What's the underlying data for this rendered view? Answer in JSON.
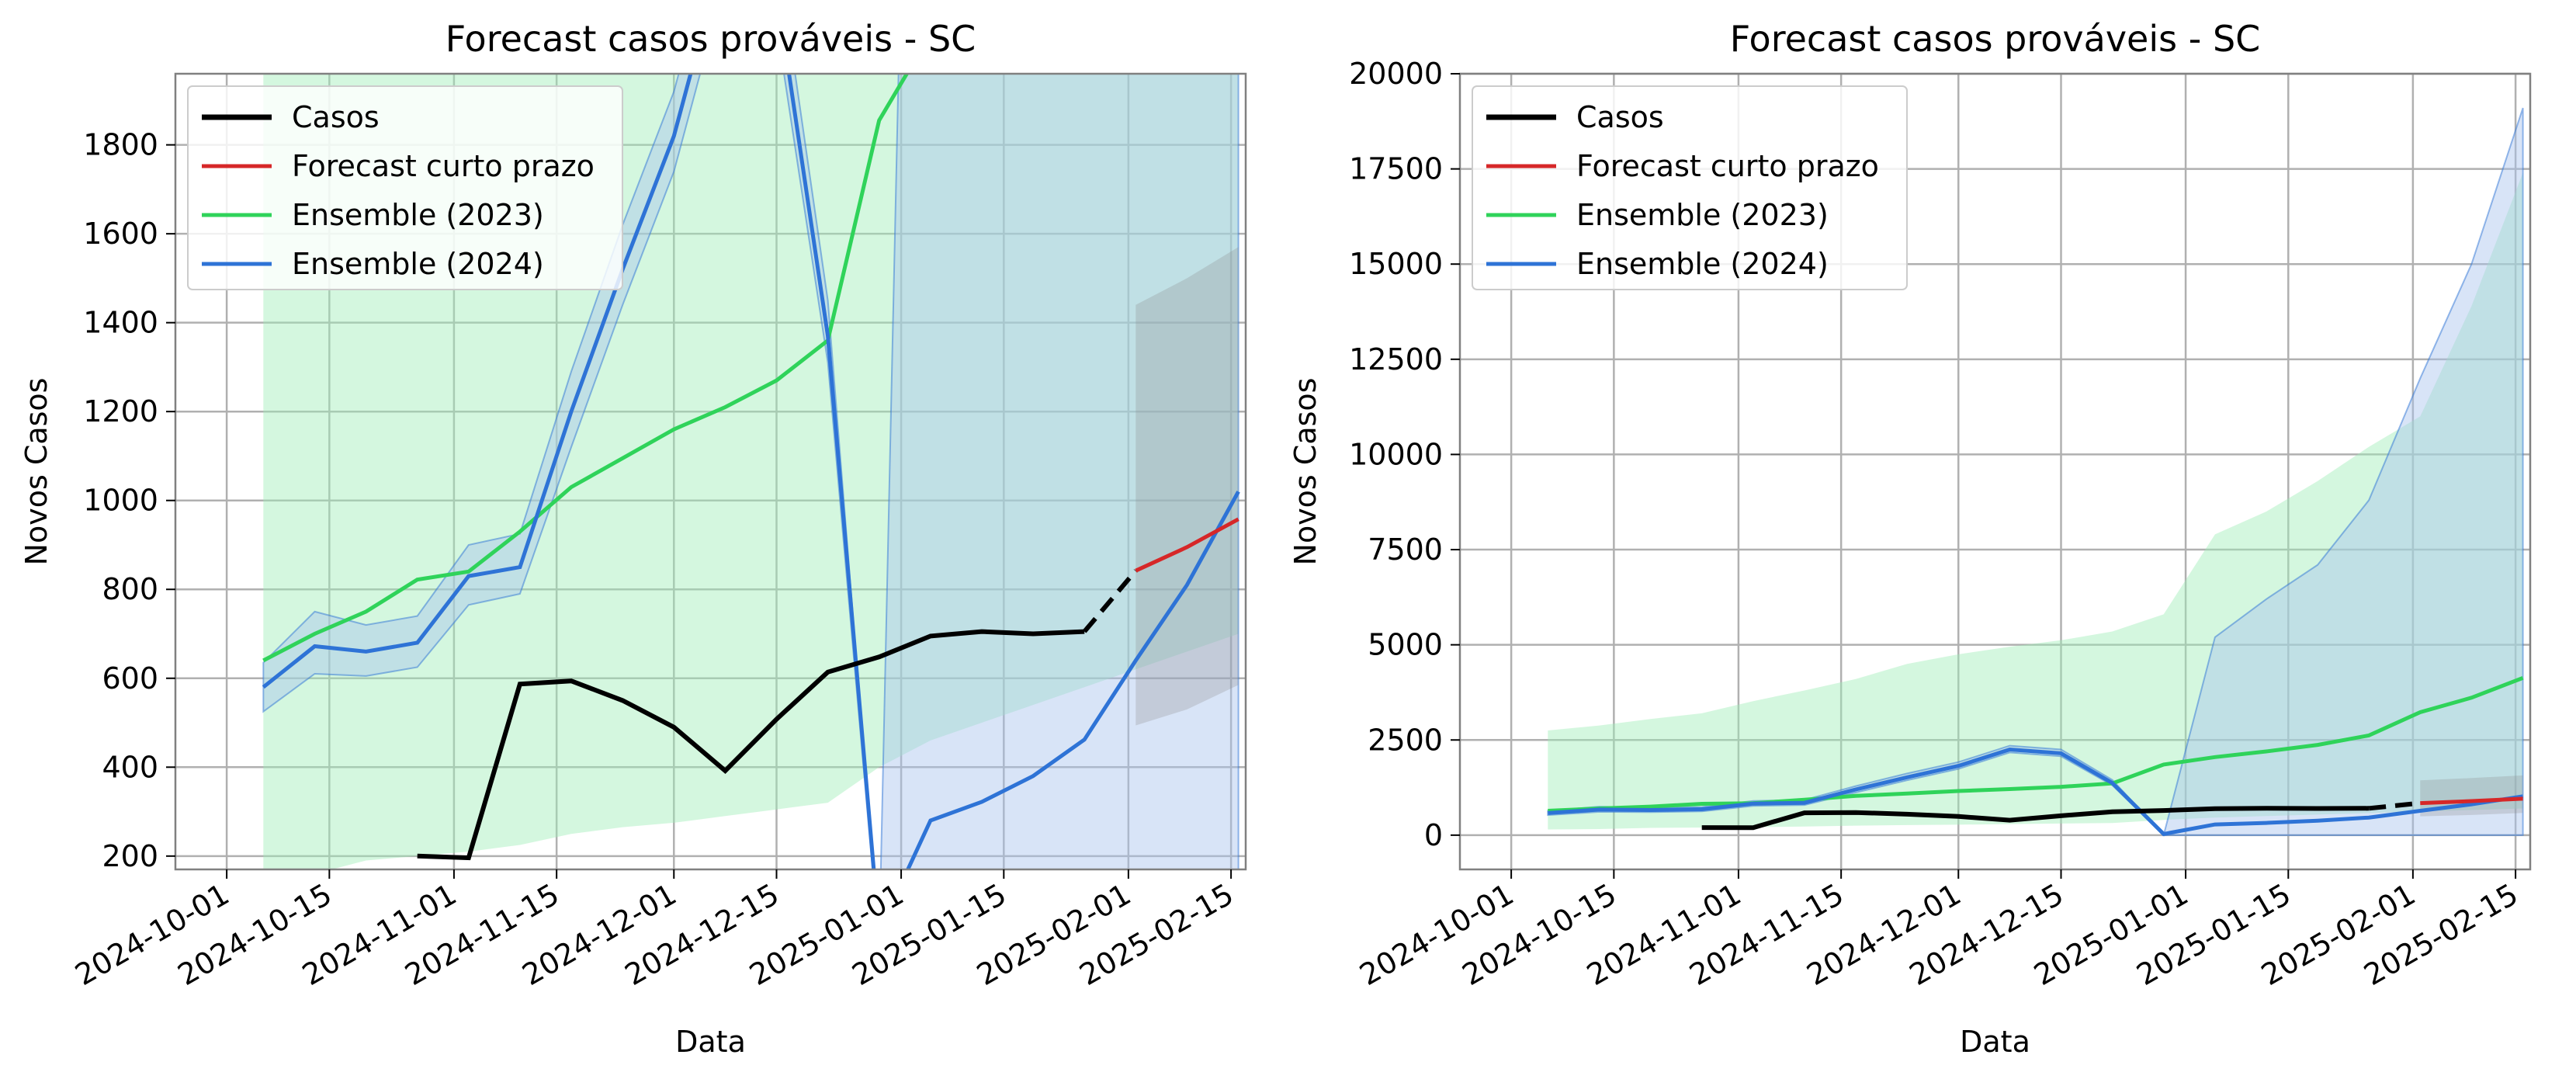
{
  "colors": {
    "casos": "#000000",
    "forecast": "#d62728",
    "ensemble2023": "#2fd35a",
    "ensemble2024": "#2e73d6",
    "forecast_band": "#8c8c8c",
    "band2023": "#9fedb7",
    "band2024": "#a8c4ee",
    "grid": "#b0b0b0"
  },
  "legend_entries": [
    "Casos",
    "Forecast curto prazo",
    "Ensemble (2023)",
    "Ensemble (2024)"
  ],
  "chart_data": [
    {
      "type": "line",
      "title": "Forecast casos prováveis - SC",
      "xlabel": "Data",
      "ylabel": "Novos Casos",
      "xlim": [
        "2024-09-24",
        "2025-02-17"
      ],
      "ylim": [
        170,
        1960
      ],
      "yticks": [
        200,
        400,
        600,
        800,
        1000,
        1200,
        1400,
        1600,
        1800
      ],
      "xticks": [
        "2024-10-01",
        "2024-10-15",
        "2024-11-01",
        "2024-11-15",
        "2024-12-01",
        "2024-12-15",
        "2025-01-01",
        "2025-01-15",
        "2025-02-01",
        "2025-02-15"
      ],
      "grid": true,
      "legend": "upper left"
    },
    {
      "type": "line",
      "title": "Forecast casos prováveis - SC",
      "xlabel": "Data",
      "ylabel": "Novos Casos",
      "xlim": [
        "2024-09-24",
        "2025-02-17"
      ],
      "ylim": [
        -900,
        20000
      ],
      "yticks": [
        0,
        2500,
        5000,
        7500,
        10000,
        12500,
        15000,
        17500,
        20000
      ],
      "xticks": [
        "2024-10-01",
        "2024-10-15",
        "2024-11-01",
        "2024-11-15",
        "2024-12-01",
        "2024-12-15",
        "2025-01-01",
        "2025-01-15",
        "2025-02-01",
        "2025-02-15"
      ],
      "grid": true,
      "legend": "upper left"
    }
  ],
  "series": {
    "casos": {
      "name": "Casos",
      "x": [
        "2024-10-27",
        "2024-11-03",
        "2024-11-10",
        "2024-11-17",
        "2024-11-24",
        "2024-12-01",
        "2024-12-08",
        "2024-12-15",
        "2024-12-22",
        "2024-12-29",
        "2025-01-05",
        "2025-01-12",
        "2025-01-19",
        "2025-01-26"
      ],
      "y": [
        200,
        196,
        587,
        594,
        550,
        490,
        392,
        508,
        614,
        648,
        695,
        705,
        700,
        705
      ]
    },
    "casos_tail": {
      "x": [
        "2025-01-26",
        "2025-02-02"
      ],
      "y": [
        705,
        842
      ]
    },
    "forecast": {
      "name": "Forecast curto prazo",
      "x": [
        "2025-02-02",
        "2025-02-09",
        "2025-02-16"
      ],
      "y": [
        842,
        895,
        958
      ],
      "lower": [
        494,
        530,
        585
      ],
      "upper": [
        1440,
        1500,
        1570
      ]
    },
    "ens2023": {
      "name": "Ensemble (2023)",
      "x": [
        "2024-10-06",
        "2024-10-13",
        "2024-10-20",
        "2024-10-27",
        "2024-11-03",
        "2024-11-10",
        "2024-11-17",
        "2024-11-24",
        "2024-12-01",
        "2024-12-08",
        "2024-12-15",
        "2024-12-22",
        "2024-12-29",
        "2025-01-05",
        "2025-01-12",
        "2025-01-19",
        "2025-01-26",
        "2025-02-02",
        "2025-02-09",
        "2025-02-16"
      ],
      "y": [
        640,
        700,
        750,
        822,
        840,
        930,
        1030,
        1095,
        1160,
        1210,
        1270,
        1360,
        1855,
        2050,
        2200,
        2370,
        2620,
        3230,
        3610,
        4130
      ],
      "lower": [
        150,
        160,
        190,
        200,
        210,
        225,
        250,
        265,
        275,
        290,
        305,
        320,
        400,
        460,
        500,
        540,
        580,
        620,
        660,
        700
      ],
      "upper": [
        2750,
        2880,
        3050,
        3200,
        3520,
        3800,
        4100,
        4500,
        4750,
        4950,
        5120,
        5350,
        5800,
        7900,
        8500,
        9300,
        10200,
        11000,
        13900,
        17400
      ]
    },
    "ens2024": {
      "name": "Ensemble (2024)",
      "x": [
        "2024-10-06",
        "2024-10-13",
        "2024-10-20",
        "2024-10-27",
        "2024-11-03",
        "2024-11-10",
        "2024-11-17",
        "2024-11-24",
        "2024-12-01",
        "2024-12-08",
        "2024-12-15",
        "2024-12-22",
        "2024-12-29",
        "2025-01-05",
        "2025-01-12",
        "2025-01-19",
        "2025-01-26",
        "2025-02-02",
        "2025-02-09",
        "2025-02-16"
      ],
      "y": [
        580,
        672,
        660,
        680,
        830,
        850,
        1200,
        1520,
        1820,
        2250,
        2150,
        1370,
        30,
        280,
        322,
        380,
        462,
        640,
        810,
        1020
      ],
      "lower": [
        525,
        610,
        605,
        625,
        765,
        790,
        1120,
        1440,
        1740,
        2170,
        2070,
        1310,
        0,
        0,
        0,
        0,
        0,
        0,
        0,
        0
      ],
      "upper": [
        635,
        750,
        720,
        740,
        900,
        925,
        1290,
        1620,
        1920,
        2350,
        2250,
        1450,
        0,
        5200,
        6200,
        7100,
        8800,
        12000,
        15000,
        19100
      ]
    }
  }
}
